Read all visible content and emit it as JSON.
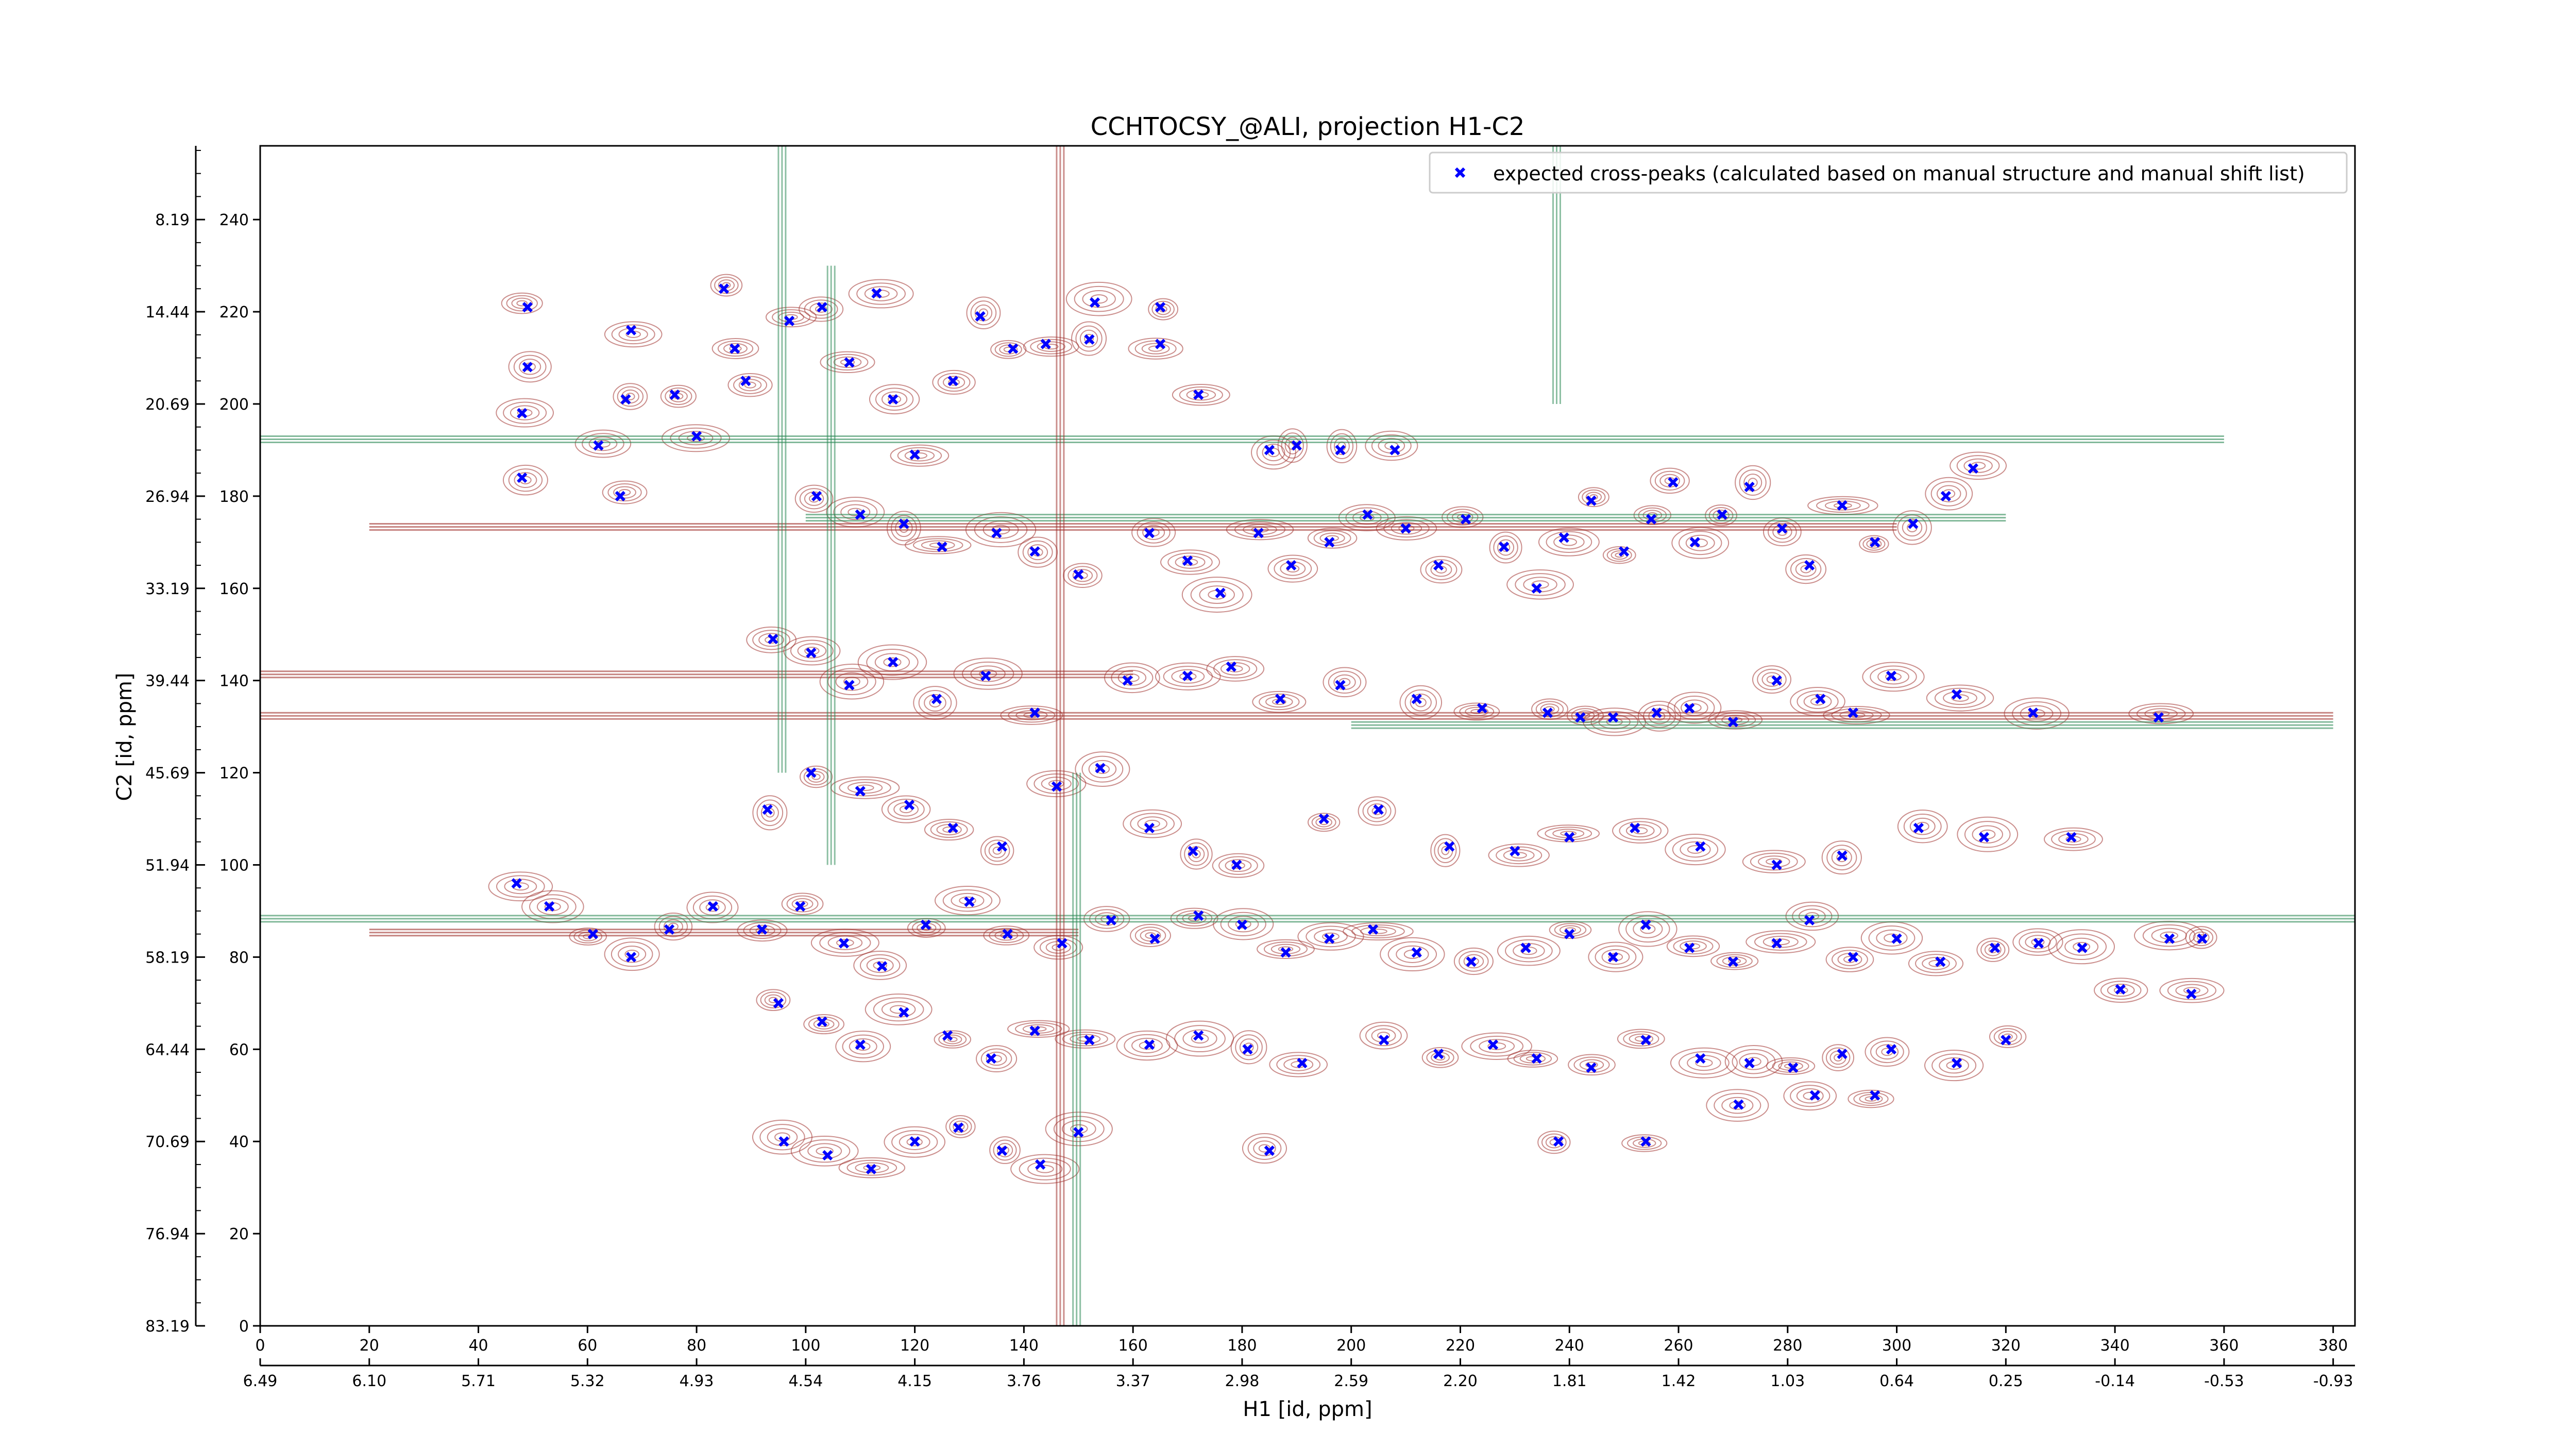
{
  "chart_data": {
    "type": "scatter",
    "title": "CCHTOCSY_@ALI, projection H1-C2",
    "xlabel": "H1 [id, ppm]",
    "ylabel": "C2 [id, ppm]",
    "xlim": [
      0,
      384
    ],
    "ylim": [
      0,
      256
    ],
    "x_ticks": [
      "0",
      "20",
      "40",
      "60",
      "80",
      "100",
      "120",
      "140",
      "160",
      "180",
      "200",
      "220",
      "240",
      "260",
      "280",
      "300",
      "320",
      "340",
      "360",
      "380"
    ],
    "x_secondary_ticks": [
      "6.49",
      "6.10",
      "5.71",
      "5.32",
      "4.93",
      "4.54",
      "4.15",
      "3.76",
      "3.37",
      "2.98",
      "2.59",
      "2.20",
      "1.81",
      "1.42",
      "1.03",
      "0.64",
      "0.25",
      "-0.14",
      "-0.53",
      "-0.93"
    ],
    "y_ticks": [
      "0",
      "20",
      "40",
      "60",
      "80",
      "100",
      "120",
      "140",
      "160",
      "180",
      "200",
      "220",
      "240"
    ],
    "y_secondary_ticks": [
      "83.19",
      "76.94",
      "70.69",
      "64.44",
      "58.19",
      "51.94",
      "45.69",
      "39.44",
      "33.19",
      "26.94",
      "20.69",
      "14.44",
      "8.19"
    ],
    "legend": {
      "label": "expected cross-peaks (calculated based on manual structure and manual shift list)",
      "position": "top-right"
    },
    "series": [
      {
        "color": "#0000ff",
        "marker": "x",
        "points": [
          [
            49,
            221
          ],
          [
            49,
            208
          ],
          [
            48,
            198
          ],
          [
            48,
            184
          ],
          [
            68,
            216
          ],
          [
            67,
            201
          ],
          [
            62,
            191
          ],
          [
            66,
            180
          ],
          [
            76,
            202
          ],
          [
            80,
            193
          ],
          [
            85,
            225
          ],
          [
            87,
            212
          ],
          [
            89,
            205
          ],
          [
            97,
            218
          ],
          [
            103,
            221
          ],
          [
            108,
            209
          ],
          [
            113,
            224
          ],
          [
            116,
            201
          ],
          [
            120,
            189
          ],
          [
            127,
            205
          ],
          [
            132,
            219
          ],
          [
            138,
            212
          ],
          [
            144,
            213
          ],
          [
            152,
            214
          ],
          [
            153,
            222
          ],
          [
            165,
            221
          ],
          [
            165,
            213
          ],
          [
            172,
            202
          ],
          [
            185,
            190
          ],
          [
            190,
            191
          ],
          [
            198,
            190
          ],
          [
            208,
            190
          ],
          [
            102,
            180
          ],
          [
            110,
            176
          ],
          [
            118,
            174
          ],
          [
            125,
            169
          ],
          [
            135,
            172
          ],
          [
            142,
            168
          ],
          [
            150,
            163
          ],
          [
            163,
            172
          ],
          [
            170,
            166
          ],
          [
            176,
            159
          ],
          [
            183,
            172
          ],
          [
            189,
            165
          ],
          [
            196,
            170
          ],
          [
            203,
            176
          ],
          [
            210,
            173
          ],
          [
            216,
            165
          ],
          [
            221,
            175
          ],
          [
            228,
            169
          ],
          [
            234,
            160
          ],
          [
            239,
            171
          ],
          [
            244,
            179
          ],
          [
            250,
            168
          ],
          [
            255,
            175
          ],
          [
            259,
            183
          ],
          [
            263,
            170
          ],
          [
            268,
            176
          ],
          [
            273,
            182
          ],
          [
            279,
            173
          ],
          [
            284,
            165
          ],
          [
            290,
            178
          ],
          [
            296,
            170
          ],
          [
            303,
            174
          ],
          [
            309,
            180
          ],
          [
            314,
            186
          ],
          [
            94,
            149
          ],
          [
            101,
            146
          ],
          [
            108,
            139
          ],
          [
            116,
            144
          ],
          [
            124,
            136
          ],
          [
            133,
            141
          ],
          [
            142,
            133
          ],
          [
            159,
            140
          ],
          [
            170,
            141
          ],
          [
            178,
            143
          ],
          [
            187,
            136
          ],
          [
            198,
            139
          ],
          [
            212,
            136
          ],
          [
            224,
            134
          ],
          [
            236,
            133
          ],
          [
            242,
            132
          ],
          [
            248,
            132
          ],
          [
            256,
            133
          ],
          [
            262,
            134
          ],
          [
            270,
            131
          ],
          [
            278,
            140
          ],
          [
            286,
            136
          ],
          [
            292,
            133
          ],
          [
            299,
            141
          ],
          [
            311,
            137
          ],
          [
            325,
            133
          ],
          [
            348,
            132
          ],
          [
            93,
            112
          ],
          [
            101,
            120
          ],
          [
            110,
            116
          ],
          [
            119,
            113
          ],
          [
            127,
            108
          ],
          [
            136,
            104
          ],
          [
            146,
            117
          ],
          [
            154,
            121
          ],
          [
            163,
            108
          ],
          [
            171,
            103
          ],
          [
            179,
            100
          ],
          [
            195,
            110
          ],
          [
            205,
            112
          ],
          [
            218,
            104
          ],
          [
            230,
            103
          ],
          [
            240,
            106
          ],
          [
            252,
            108
          ],
          [
            264,
            104
          ],
          [
            278,
            100
          ],
          [
            290,
            102
          ],
          [
            304,
            108
          ],
          [
            316,
            106
          ],
          [
            332,
            106
          ],
          [
            47,
            96
          ],
          [
            53,
            91
          ],
          [
            61,
            85
          ],
          [
            68,
            80
          ],
          [
            75,
            86
          ],
          [
            83,
            91
          ],
          [
            92,
            86
          ],
          [
            99,
            91
          ],
          [
            107,
            83
          ],
          [
            114,
            78
          ],
          [
            122,
            87
          ],
          [
            130,
            92
          ],
          [
            137,
            85
          ],
          [
            147,
            83
          ],
          [
            156,
            88
          ],
          [
            164,
            84
          ],
          [
            172,
            89
          ],
          [
            180,
            87
          ],
          [
            188,
            81
          ],
          [
            196,
            84
          ],
          [
            204,
            86
          ],
          [
            212,
            81
          ],
          [
            222,
            79
          ],
          [
            232,
            82
          ],
          [
            240,
            85
          ],
          [
            248,
            80
          ],
          [
            254,
            87
          ],
          [
            262,
            82
          ],
          [
            270,
            79
          ],
          [
            278,
            83
          ],
          [
            284,
            88
          ],
          [
            292,
            80
          ],
          [
            300,
            84
          ],
          [
            308,
            79
          ],
          [
            318,
            82
          ],
          [
            326,
            83
          ],
          [
            334,
            82
          ],
          [
            350,
            84
          ],
          [
            356,
            84
          ],
          [
            95,
            70
          ],
          [
            103,
            66
          ],
          [
            110,
            61
          ],
          [
            118,
            68
          ],
          [
            126,
            63
          ],
          [
            134,
            58
          ],
          [
            142,
            64
          ],
          [
            152,
            62
          ],
          [
            163,
            61
          ],
          [
            172,
            63
          ],
          [
            181,
            60
          ],
          [
            191,
            57
          ],
          [
            206,
            62
          ],
          [
            216,
            59
          ],
          [
            226,
            61
          ],
          [
            234,
            58
          ],
          [
            244,
            56
          ],
          [
            254,
            62
          ],
          [
            264,
            58
          ],
          [
            273,
            57
          ],
          [
            281,
            56
          ],
          [
            290,
            59
          ],
          [
            299,
            60
          ],
          [
            311,
            57
          ],
          [
            320,
            62
          ],
          [
            341,
            73
          ],
          [
            354,
            72
          ],
          [
            96,
            40
          ],
          [
            104,
            37
          ],
          [
            112,
            34
          ],
          [
            120,
            40
          ],
          [
            128,
            43
          ],
          [
            136,
            38
          ],
          [
            143,
            35
          ],
          [
            150,
            42
          ],
          [
            185,
            38
          ],
          [
            238,
            40
          ],
          [
            254,
            40
          ],
          [
            271,
            48
          ],
          [
            285,
            50
          ],
          [
            296,
            50
          ]
        ]
      }
    ]
  }
}
